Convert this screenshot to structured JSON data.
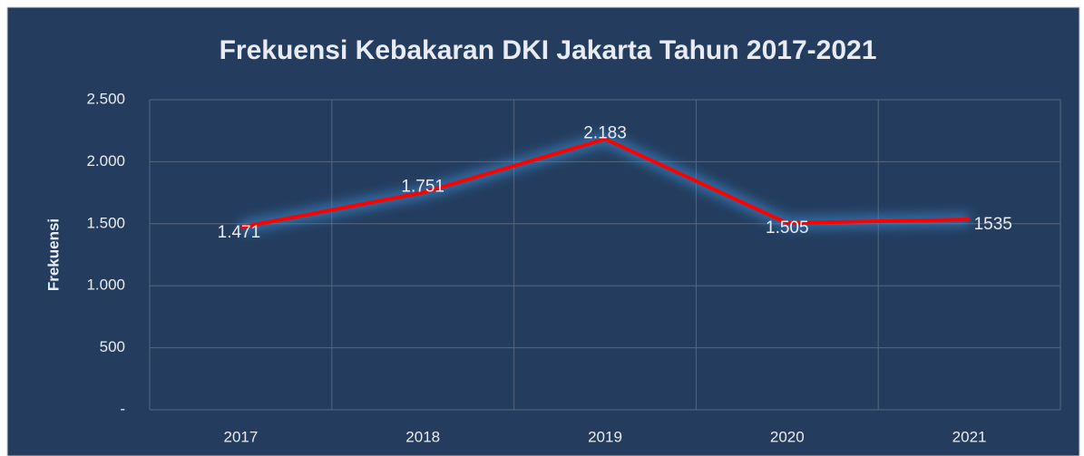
{
  "chart_data": {
    "type": "line",
    "title": "Frekuensi Kebakaran DKI Jakarta Tahun 2017-2021",
    "ylabel": "Frekuensi",
    "categories": [
      "2017",
      "2018",
      "2019",
      "2020",
      "2021"
    ],
    "series": [
      {
        "name": "Frekuensi",
        "color": "#ff0000",
        "values": [
          1471,
          1751,
          2183,
          1505,
          1535
        ],
        "value_labels": [
          "1.471",
          "1.751",
          "2.183",
          "1.505",
          "1535"
        ]
      }
    ],
    "ylim": [
      0,
      2500
    ],
    "yticks": [
      {
        "value": 0,
        "label": "-"
      },
      500,
      {
        "value": 1000,
        "label": "1.000"
      },
      {
        "value": 1500,
        "label": "1.500"
      },
      {
        "value": 2000,
        "label": "2.000"
      },
      {
        "value": 2500,
        "label": "2.500"
      }
    ],
    "grid": true
  }
}
